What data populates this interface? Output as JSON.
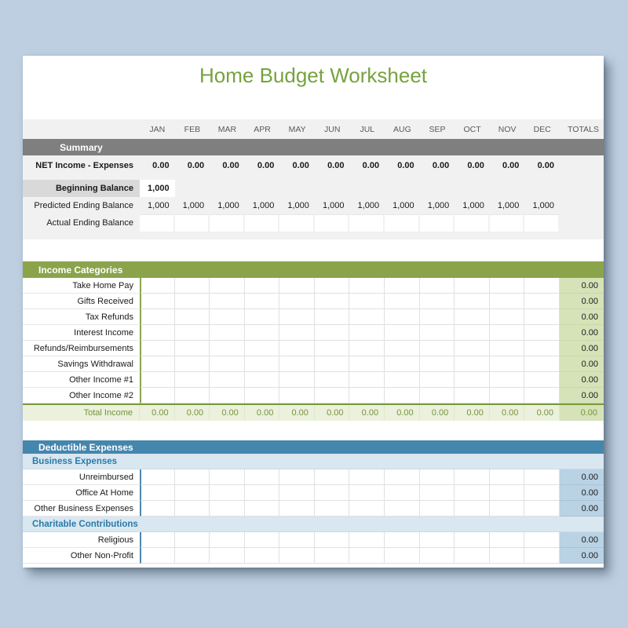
{
  "title": "Home Budget Worksheet",
  "columns": {
    "months": [
      "JAN",
      "FEB",
      "MAR",
      "APR",
      "MAY",
      "JUN",
      "JUL",
      "AUG",
      "SEP",
      "OCT",
      "NOV",
      "DEC"
    ],
    "totals_label": "TOTALS"
  },
  "summary": {
    "header": "Summary",
    "net": {
      "label": "NET Income - Expenses",
      "values": [
        "0.00",
        "0.00",
        "0.00",
        "0.00",
        "0.00",
        "0.00",
        "0.00",
        "0.00",
        "0.00",
        "0.00",
        "0.00",
        "0.00"
      ]
    },
    "beginning": {
      "label": "Beginning Balance",
      "value": "1,000"
    },
    "predicted": {
      "label": "Predicted Ending Balance",
      "values": [
        "1,000",
        "1,000",
        "1,000",
        "1,000",
        "1,000",
        "1,000",
        "1,000",
        "1,000",
        "1,000",
        "1,000",
        "1,000",
        "1,000"
      ]
    },
    "actual": {
      "label": "Actual Ending Balance"
    }
  },
  "income": {
    "header": "Income Categories",
    "rows": [
      {
        "label": "Take Home Pay",
        "total": "0.00"
      },
      {
        "label": "Gifts Received",
        "total": "0.00"
      },
      {
        "label": "Tax Refunds",
        "total": "0.00"
      },
      {
        "label": "Interest Income",
        "total": "0.00"
      },
      {
        "label": "Refunds/Reimbursements",
        "total": "0.00"
      },
      {
        "label": "Savings Withdrawal",
        "total": "0.00"
      },
      {
        "label": "Other Income #1",
        "total": "0.00"
      },
      {
        "label": "Other Income #2",
        "total": "0.00"
      }
    ],
    "total_row": {
      "label": "Total Income",
      "values": [
        "0.00",
        "0.00",
        "0.00",
        "0.00",
        "0.00",
        "0.00",
        "0.00",
        "0.00",
        "0.00",
        "0.00",
        "0.00",
        "0.00"
      ],
      "total": "0.00"
    }
  },
  "expenses": {
    "header": "Deductible Expenses",
    "groups": [
      {
        "subheader": "Business Expenses",
        "rows": [
          {
            "label": "Unreimbursed",
            "total": "0.00"
          },
          {
            "label": "Office At Home",
            "total": "0.00"
          },
          {
            "label": "Other Business Expenses",
            "total": "0.00"
          }
        ]
      },
      {
        "subheader": "Charitable Contributions",
        "rows": [
          {
            "label": "Religious",
            "total": "0.00"
          },
          {
            "label": "Other Non-Profit",
            "total": "0.00"
          }
        ]
      }
    ]
  },
  "colors": {
    "page_background": "#bdcfe1",
    "title_text": "#77a23e",
    "month_text": "#595959",
    "summary_bar": "#7f7f7f",
    "summary_band_bg": "#f1f1f1",
    "beginning_label_bg": "#d9d9d9",
    "income_accent": "#8ba44b",
    "income_totals_bg": "#d6e3b9",
    "total_income_row_bg": "#ebf1dd",
    "green_text": "#76933c",
    "expense_accent": "#4586ad",
    "expense_subheader_bg": "#d9e7f1",
    "expense_subheader_text": "#2a7aa8",
    "expense_totals_bg": "#b9d2e4"
  }
}
